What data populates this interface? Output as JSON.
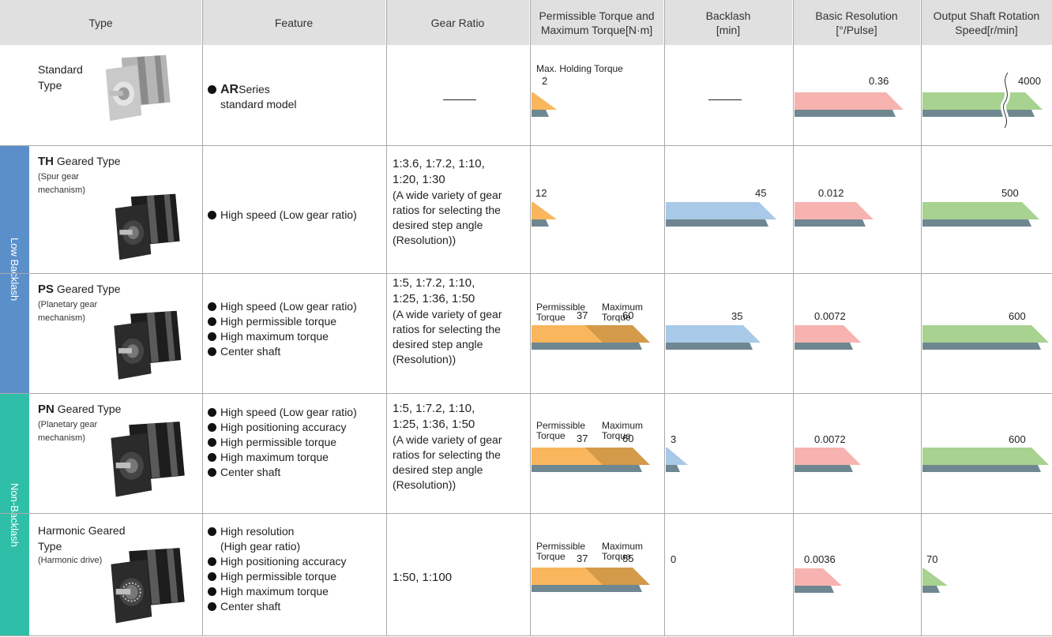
{
  "headers": {
    "type": "Type",
    "feature": "Feature",
    "gear_ratio": "Gear Ratio",
    "torque": "Permissible Torque and\nMaximum Torque[N·m]",
    "backlash": "Backlash\n[min]",
    "resolution": "Basic Resolution\n[°/Pulse]",
    "speed": "Output Shaft Rotation\nSpeed[r/min]"
  },
  "groups": {
    "low_backlash": "Low Backlash",
    "non_backlash": "Non-Backlash"
  },
  "colors": {
    "header_bg": "#e0e0e0",
    "low_backlash": "#5b8fc9",
    "non_backlash": "#2fbfa8",
    "torque_bar": "#f9b65c",
    "max_torque_bar": "#d39a49",
    "backlash_bar": "#a9c9e8",
    "resolution_bar": "#f6b3b0",
    "speed_bar": "#a8d28f",
    "shadow": "#6f8790"
  },
  "common": {
    "permissible": "Permissible",
    "maximum": "Maximum",
    "torque_word": "Torque",
    "dash": "——"
  },
  "rows": [
    {
      "name_bold": "AR",
      "title": "Standard\nType",
      "feature_bold": "AR",
      "feature_rest": " Series",
      "feature_line2": "standard model",
      "gear_ratio": "",
      "torque_label": "Max. Holding Torque",
      "torque": 2,
      "backlash": null,
      "resolution": 0.36,
      "speed": 4000,
      "speed_axis_break": true
    },
    {
      "name_bold": "TH",
      "name_rest": " Geared Type",
      "subtitle": "(Spur gear\nmechanism)",
      "features": [
        "High speed (Low gear ratio)"
      ],
      "gear_ratio": "1:3.6, 1:7.2, 1:10,\n1:20, 1:30",
      "gear_note": "(A wide variety of gear\nratios for selecting the\ndesired step angle\n(Resolution))",
      "torque": 12,
      "backlash": 45,
      "resolution": 0.012,
      "speed": 500
    },
    {
      "name_bold": "PS",
      "name_rest": " Geared Type",
      "subtitle": "(Planetary gear\nmechanism)",
      "features": [
        "High speed (Low gear ratio)",
        "High permissible torque",
        "High maximum torque",
        "Center shaft"
      ],
      "gear_ratio": "1:5, 1:7.2, 1:10,\n1:25, 1:36, 1:50",
      "gear_note": "(A wide variety of gear\nratios for selecting the\ndesired step angle\n(Resolution))",
      "permissible_torque": 37,
      "maximum_torque": 60,
      "backlash": 35,
      "resolution": 0.0072,
      "speed": 600
    },
    {
      "name_bold": "PN",
      "name_rest": " Geared Type",
      "subtitle": "(Planetary gear\nmechanism)",
      "features": [
        "High speed (Low gear ratio)",
        "High positioning accuracy",
        "High permissible torque",
        "High maximum torque",
        "Center shaft"
      ],
      "gear_ratio": "1:5, 1:7.2, 1:10,\n1:25, 1:36, 1:50",
      "gear_note": "(A wide variety of gear\nratios for selecting the\ndesired step angle\n(Resolution))",
      "permissible_torque": 37,
      "maximum_torque": 60,
      "backlash": 3,
      "resolution": 0.0072,
      "speed": 600
    },
    {
      "title": "Harmonic Geared\nType",
      "subtitle": "(Harmonic drive)",
      "features": [
        "High resolution",
        "(High gear ratio)",
        "High positioning accuracy",
        "High permissible torque",
        "High maximum torque",
        "Center shaft"
      ],
      "gear_ratio": "1:50, 1:100",
      "permissible_torque": 37,
      "maximum_torque": 55,
      "backlash": 0,
      "resolution": 0.0036,
      "speed": 70
    }
  ]
}
